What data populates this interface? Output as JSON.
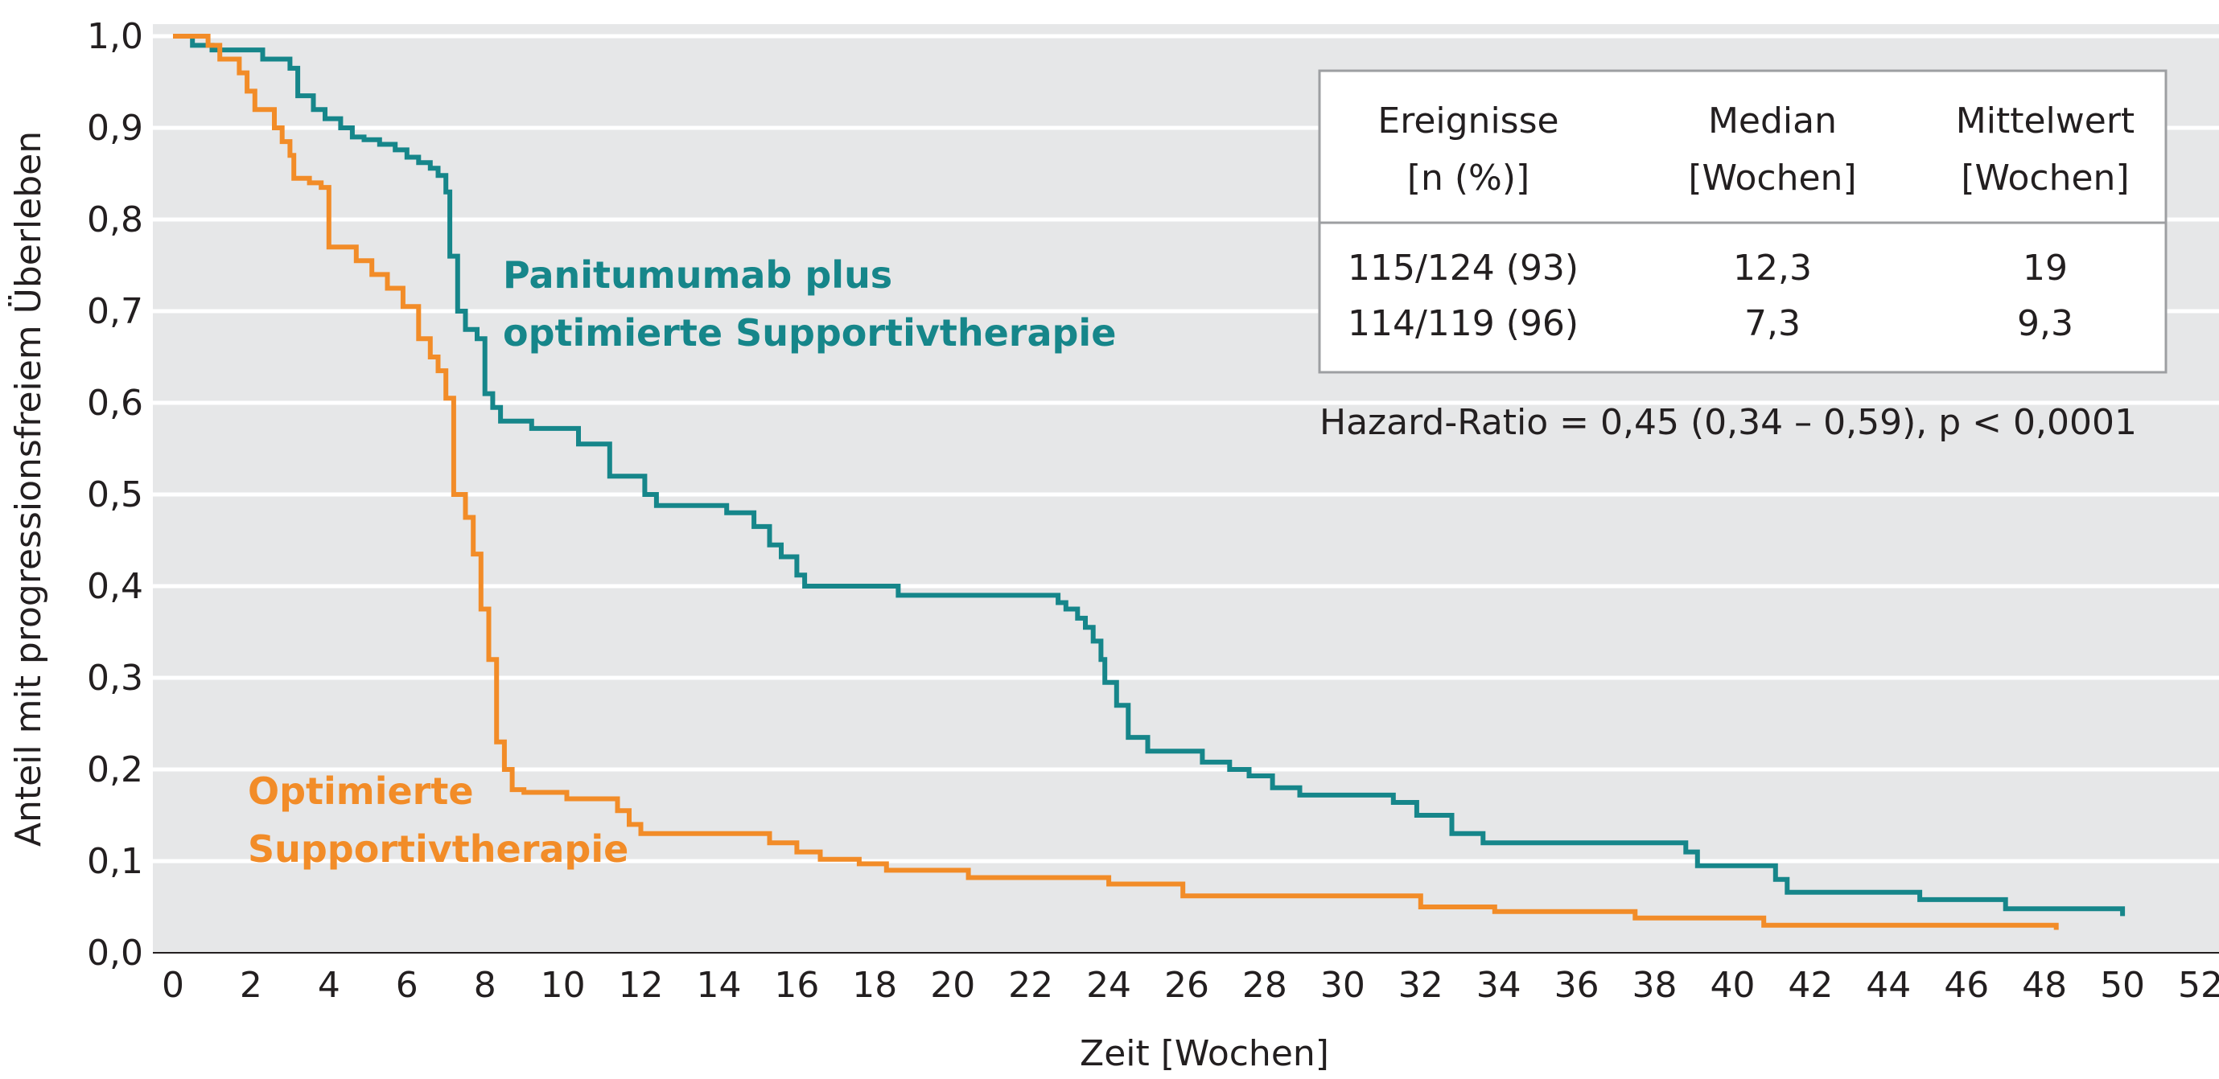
{
  "chart_data": {
    "type": "line",
    "step": true,
    "xlabel": "Zeit [Wochen]",
    "ylabel": "Anteil mit progressionsfreiem Überleben",
    "xlim": [
      0,
      52
    ],
    "ylim": [
      0,
      1
    ],
    "x_ticks": [
      0,
      2,
      4,
      6,
      8,
      10,
      12,
      14,
      16,
      18,
      20,
      22,
      24,
      26,
      28,
      30,
      32,
      34,
      36,
      38,
      40,
      42,
      44,
      46,
      48,
      50,
      52
    ],
    "y_ticks": [
      0,
      0.1,
      0.2,
      0.3,
      0.4,
      0.5,
      0.6,
      0.7,
      0.8,
      0.9,
      1.0
    ],
    "y_tick_labels": [
      "0,0",
      "0,1",
      "0,2",
      "0,3",
      "0,4",
      "0,5",
      "0,6",
      "0,7",
      "0,8",
      "0,9",
      "1,0"
    ],
    "grid": "horizontal",
    "background": "#e6e7e8",
    "series": [
      {
        "name_lines": [
          "Panitumumab plus",
          "optimierte Supportivtherapie"
        ],
        "color": "#16868a",
        "points": [
          [
            0,
            1.0
          ],
          [
            0.5,
            0.99
          ],
          [
            1.0,
            0.985
          ],
          [
            2.3,
            0.975
          ],
          [
            3.0,
            0.965
          ],
          [
            3.2,
            0.935
          ],
          [
            3.6,
            0.92
          ],
          [
            3.9,
            0.91
          ],
          [
            4.3,
            0.9
          ],
          [
            4.6,
            0.89
          ],
          [
            4.9,
            0.887
          ],
          [
            5.3,
            0.882
          ],
          [
            5.7,
            0.876
          ],
          [
            6.0,
            0.868
          ],
          [
            6.3,
            0.862
          ],
          [
            6.6,
            0.856
          ],
          [
            6.8,
            0.848
          ],
          [
            7.0,
            0.83
          ],
          [
            7.1,
            0.76
          ],
          [
            7.3,
            0.7
          ],
          [
            7.5,
            0.68
          ],
          [
            7.8,
            0.67
          ],
          [
            8.0,
            0.61
          ],
          [
            8.2,
            0.595
          ],
          [
            8.4,
            0.58
          ],
          [
            9.2,
            0.572
          ],
          [
            10.4,
            0.555
          ],
          [
            11.2,
            0.52
          ],
          [
            12.1,
            0.5
          ],
          [
            12.4,
            0.488
          ],
          [
            14.2,
            0.48
          ],
          [
            14.9,
            0.465
          ],
          [
            15.3,
            0.445
          ],
          [
            15.6,
            0.432
          ],
          [
            16.0,
            0.412
          ],
          [
            16.2,
            0.4
          ],
          [
            18.6,
            0.39
          ],
          [
            22.7,
            0.382
          ],
          [
            22.9,
            0.375
          ],
          [
            23.2,
            0.365
          ],
          [
            23.4,
            0.355
          ],
          [
            23.6,
            0.34
          ],
          [
            23.8,
            0.32
          ],
          [
            23.9,
            0.295
          ],
          [
            24.2,
            0.27
          ],
          [
            24.5,
            0.235
          ],
          [
            25.0,
            0.22
          ],
          [
            26.4,
            0.208
          ],
          [
            27.1,
            0.2
          ],
          [
            27.6,
            0.193
          ],
          [
            28.2,
            0.18
          ],
          [
            28.9,
            0.172
          ],
          [
            31.3,
            0.164
          ],
          [
            31.9,
            0.15
          ],
          [
            32.8,
            0.13
          ],
          [
            33.6,
            0.12
          ],
          [
            38.8,
            0.11
          ],
          [
            39.1,
            0.095
          ],
          [
            41.1,
            0.08
          ],
          [
            41.4,
            0.066
          ],
          [
            44.8,
            0.058
          ],
          [
            47.0,
            0.048
          ],
          [
            50.0,
            0.04
          ]
        ]
      },
      {
        "name_lines": [
          "Optimierte",
          "Supportivtherapie"
        ],
        "color": "#f28c28",
        "points": [
          [
            0,
            1.0
          ],
          [
            0.9,
            0.99
          ],
          [
            1.2,
            0.975
          ],
          [
            1.7,
            0.96
          ],
          [
            1.9,
            0.94
          ],
          [
            2.1,
            0.92
          ],
          [
            2.6,
            0.9
          ],
          [
            2.8,
            0.885
          ],
          [
            3.0,
            0.87
          ],
          [
            3.1,
            0.845
          ],
          [
            3.5,
            0.84
          ],
          [
            3.8,
            0.835
          ],
          [
            4.0,
            0.77
          ],
          [
            4.7,
            0.755
          ],
          [
            5.1,
            0.74
          ],
          [
            5.5,
            0.725
          ],
          [
            5.9,
            0.705
          ],
          [
            6.3,
            0.67
          ],
          [
            6.6,
            0.65
          ],
          [
            6.8,
            0.635
          ],
          [
            7.0,
            0.605
          ],
          [
            7.2,
            0.5
          ],
          [
            7.5,
            0.475
          ],
          [
            7.7,
            0.435
          ],
          [
            7.9,
            0.375
          ],
          [
            8.1,
            0.32
          ],
          [
            8.3,
            0.23
          ],
          [
            8.5,
            0.2
          ],
          [
            8.7,
            0.178
          ],
          [
            9.0,
            0.175
          ],
          [
            10.1,
            0.168
          ],
          [
            11.4,
            0.155
          ],
          [
            11.7,
            0.14
          ],
          [
            12.0,
            0.13
          ],
          [
            15.3,
            0.12
          ],
          [
            16.0,
            0.11
          ],
          [
            16.6,
            0.102
          ],
          [
            17.6,
            0.097
          ],
          [
            18.3,
            0.09
          ],
          [
            20.4,
            0.082
          ],
          [
            24.0,
            0.075
          ],
          [
            25.9,
            0.062
          ],
          [
            32.0,
            0.05
          ],
          [
            33.9,
            0.045
          ],
          [
            37.5,
            0.038
          ],
          [
            40.8,
            0.03
          ],
          [
            48.3,
            0.025
          ]
        ]
      }
    ],
    "table": {
      "headers": [
        [
          "Ereignisse",
          "[n (%)]"
        ],
        [
          "Median",
          "[Wochen]"
        ],
        [
          "Mittelwert",
          "[Wochen]"
        ]
      ],
      "rows": [
        [
          "115/124 (93)",
          "12,3",
          "19"
        ],
        [
          "114/119 (96)",
          "7,3",
          "9,3"
        ]
      ]
    },
    "annotation": "Hazard-Ratio = 0,45 (0,34 – 0,59), p < 0,0001"
  }
}
